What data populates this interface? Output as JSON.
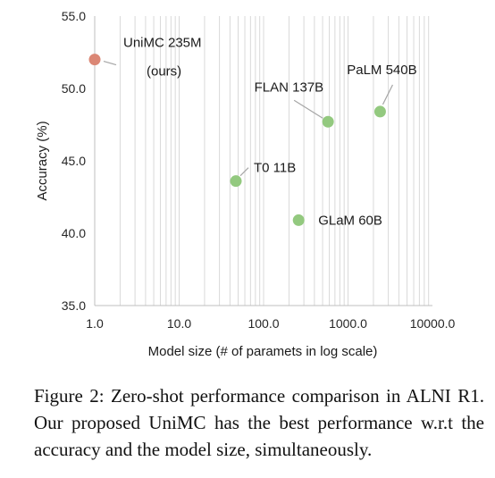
{
  "chart_data": {
    "type": "scatter",
    "title": "",
    "xlabel": "Model size (# of paramets in log scale)",
    "ylabel": "Accuracy (%)",
    "x_scale": "log",
    "xlim": [
      1.0,
      10000.0
    ],
    "ylim": [
      35.0,
      55.0
    ],
    "x_ticks": [
      "1.0",
      "10.0",
      "100.0",
      "1000.0",
      "10000.0"
    ],
    "y_ticks": [
      "35.0",
      "40.0",
      "45.0",
      "50.0",
      "55.0"
    ],
    "grid": "vertical",
    "points": [
      {
        "label": "UniMC 235M",
        "sublabel": "(ours)",
        "x": 1.0,
        "y": 52.0,
        "color": "#db8775"
      },
      {
        "label": "FLAN 137B",
        "sublabel": "",
        "x": 580,
        "y": 47.7,
        "color": "#93c97f"
      },
      {
        "label": "PaLM 540B",
        "sublabel": "",
        "x": 2400,
        "y": 48.4,
        "color": "#93c97f"
      },
      {
        "label": "T0 11B",
        "sublabel": "",
        "x": 47,
        "y": 43.6,
        "color": "#93c97f"
      },
      {
        "label": "GLaM 60B",
        "sublabel": "",
        "x": 260,
        "y": 40.9,
        "color": "#93c97f"
      }
    ]
  },
  "caption": "Figure 2: Zero-shot performance comparison in ALNI R1.  Our proposed UniMC has the best performance w.r.t the accuracy and the model size, simultaneously."
}
